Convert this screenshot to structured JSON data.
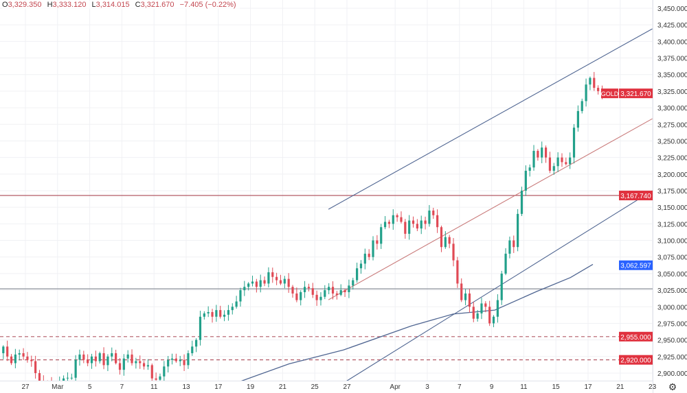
{
  "header": {
    "open_label": "O",
    "open": "3,329.350",
    "high_label": "H",
    "high": "3,333.120",
    "low_label": "L",
    "low": "3,314.015",
    "close_label": "C",
    "close": "3,321.670",
    "change": "−7.405 (−0.22%)"
  },
  "settings_icon": "gear-icon",
  "colors": {
    "up": "#22a08a",
    "down": "#e04a55",
    "trend_blue": "#4f6591",
    "trend_red": "#c97a7a",
    "ma": "#4f6591",
    "hline_red": "#b35a66",
    "hline_gray": "#8a8f99",
    "badge_red": "#e0323f",
    "badge_blue": "#2962ff"
  },
  "chart_data": {
    "type": "candlestick",
    "symbol": "GOLD",
    "ylim": [
      2900,
      3450
    ],
    "yticks": [
      2900,
      2925,
      2950,
      2975,
      3000,
      3025,
      3050,
      3075,
      3100,
      3125,
      3150,
      3175,
      3200,
      3225,
      3250,
      3275,
      3300,
      3325,
      3350,
      3375,
      3400,
      3425,
      3450
    ],
    "ytick_labels": [
      "2,900.000",
      "2,925.000",
      "2,950.000",
      "2,975.000",
      "3,000.000",
      "3,025.000",
      "3,050.000",
      "3,075.000",
      "3,100.000",
      "3,125.000",
      "3,150.000",
      "3,175.000",
      "3,200.000",
      "3,225.000",
      "3,250.000",
      "3,275.000",
      "3,300.000",
      "3,325.000",
      "3,350.000",
      "3,375.000",
      "3,400.000",
      "3,425.000",
      "3,450.000"
    ],
    "x_unit": "trading days since Feb 27",
    "xlim": [
      -1.6,
      39.0
    ],
    "xticks": [
      {
        "label": "27",
        "day": 0
      },
      {
        "label": "Mar",
        "day": 2
      },
      {
        "label": "5",
        "day": 4
      },
      {
        "label": "7",
        "day": 6
      },
      {
        "label": "11",
        "day": 8
      },
      {
        "label": "13",
        "day": 10
      },
      {
        "label": "17",
        "day": 12
      },
      {
        "label": "19",
        "day": 14
      },
      {
        "label": "21",
        "day": 16
      },
      {
        "label": "25",
        "day": 18
      },
      {
        "label": "27",
        "day": 20
      },
      {
        "label": "Apr",
        "day": 23
      },
      {
        "label": "3",
        "day": 25
      },
      {
        "label": "7",
        "day": 27
      },
      {
        "label": "9",
        "day": 29
      },
      {
        "label": "11",
        "day": 31
      },
      {
        "label": "15",
        "day": 33
      },
      {
        "label": "17",
        "day": 35
      },
      {
        "label": "21",
        "day": 37
      },
      {
        "label": "23",
        "day": 39
      }
    ],
    "candles_per_day": 4,
    "first_candle_day": -1.5,
    "first_open": 2930,
    "closes": [
      2940,
      2925,
      2915,
      2928,
      2930,
      2925,
      2920,
      2918,
      2900,
      2888,
      2886,
      2885,
      2884,
      2885,
      2886,
      2892,
      2893,
      2893,
      2920,
      2928,
      2920,
      2915,
      2925,
      2918,
      2930,
      2912,
      2925,
      2930,
      2915,
      2905,
      2922,
      2928,
      2915,
      2918,
      2915,
      2910,
      2912,
      2892,
      2890,
      2895,
      2910,
      2920,
      2922,
      2918,
      2920,
      2912,
      2930,
      2940,
      2950,
      2985,
      2990,
      2992,
      2985,
      2995,
      2985,
      2988,
      2995,
      3000,
      3008,
      3025,
      3030,
      3035,
      3038,
      3030,
      3040,
      3035,
      3052,
      3045,
      3040,
      3035,
      3042,
      3030,
      3020,
      3010,
      3022,
      3030,
      3028,
      3018,
      3010,
      3015,
      3025,
      3030,
      3020,
      3018,
      3025,
      3022,
      3032,
      3040,
      3058,
      3065,
      3080,
      3075,
      3100,
      3095,
      3120,
      3128,
      3125,
      3138,
      3135,
      3128,
      3110,
      3130,
      3125,
      3118,
      3130,
      3125,
      3145,
      3138,
      3120,
      3090,
      3105,
      3095,
      3070,
      3035,
      3010,
      3020,
      3000,
      2982,
      2990,
      3005,
      3000,
      2975,
      2985,
      3010,
      3050,
      3080,
      3100,
      3090,
      3140,
      3175,
      3205,
      3210,
      3235,
      3225,
      3240,
      3225,
      3205,
      3212,
      3225,
      3218,
      3215,
      3225,
      3270,
      3295,
      3310,
      3335,
      3345,
      3330,
      3325,
      3321.67
    ],
    "moving_average": [
      [
        13.2,
        2886
      ],
      [
        16.4,
        2914
      ],
      [
        19.8,
        2935
      ],
      [
        24.0,
        2971
      ],
      [
        26.6,
        2989
      ],
      [
        29.2,
        2995
      ],
      [
        31.8,
        3023
      ],
      [
        33.9,
        3044
      ],
      [
        35.3,
        3064
      ]
    ],
    "trendlines": [
      {
        "name": "upper-channel-line",
        "color": "trend_blue",
        "from": [
          18.85,
          3147
        ],
        "to": [
          39.0,
          3419
        ]
      },
      {
        "name": "mid-trendline",
        "color": "trend_red",
        "from": [
          18.85,
          3010.5
        ],
        "to": [
          39.0,
          3283.5
        ]
      },
      {
        "name": "lower-channel-line",
        "color": "trend_blue",
        "from": [
          19.8,
          2885.4
        ],
        "to": [
          39.0,
          3175
        ]
      }
    ],
    "horizontal_lines": [
      {
        "name": "resistance-line",
        "price": 3167.74,
        "style": "solid",
        "color": "hline_red"
      },
      {
        "name": "support-line",
        "price": 3027,
        "style": "solid",
        "color": "hline_gray"
      },
      {
        "name": "support-dashed-line",
        "price": 2955,
        "style": "dashed",
        "color": "hline_red"
      },
      {
        "name": "support-dashed-line-2",
        "price": 2920,
        "style": "dashed",
        "color": "hline_red"
      }
    ],
    "price_badges": [
      {
        "name": "last-price-badge",
        "symbol": "GOLD",
        "label": "3,321.670",
        "price": 3321.67,
        "color": "badge_red"
      },
      {
        "name": "resistance-badge",
        "label": "3,167.740",
        "price": 3167.74,
        "color": "badge_red"
      },
      {
        "name": "ma-value-badge",
        "label": "3,062.597",
        "price": 3062.597,
        "color": "badge_blue"
      },
      {
        "name": "level-2955-badge",
        "label": "2,955.000",
        "price": 2955,
        "color": "badge_red"
      },
      {
        "name": "level-2920-badge",
        "label": "2,920.000",
        "price": 2920,
        "color": "badge_red"
      }
    ]
  }
}
